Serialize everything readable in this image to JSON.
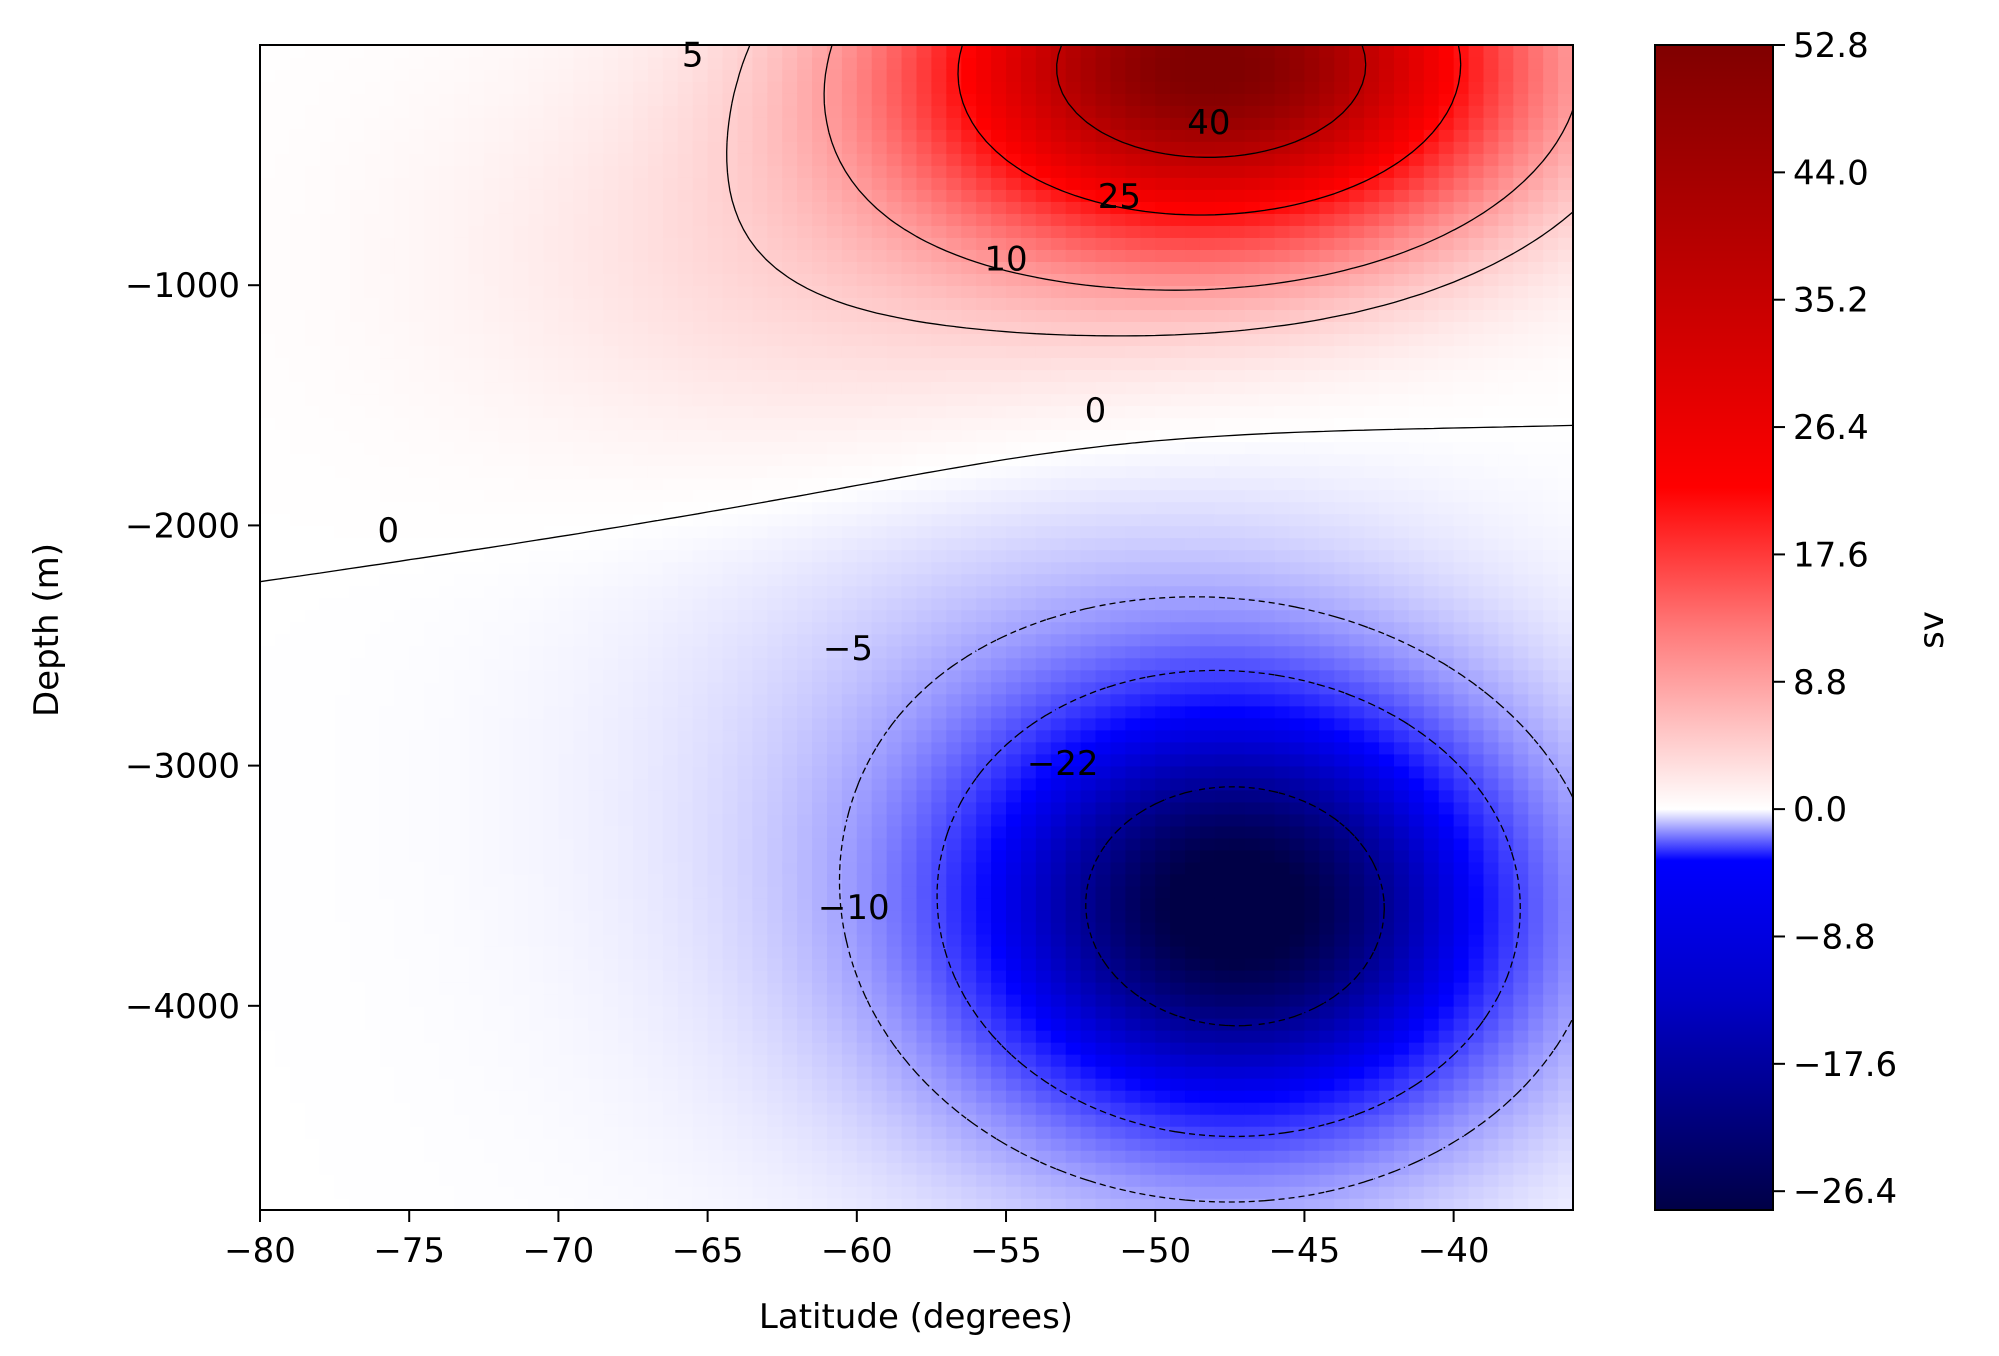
{
  "chart_data": {
    "type": "heatmap",
    "subtype": "filled-contour",
    "title": "",
    "xlabel": "Latitude (degrees)",
    "ylabel": "Depth (m)",
    "xlim": [
      -80,
      -36
    ],
    "ylim": [
      -4850,
      0
    ],
    "x_ticks": [
      -80,
      -75,
      -70,
      -65,
      -60,
      -55,
      -50,
      -45,
      -40
    ],
    "x_tick_labels": [
      "−80",
      "−75",
      "−70",
      "−65",
      "−60",
      "−55",
      "−50",
      "−45",
      "−40"
    ],
    "y_ticks": [
      -1000,
      -2000,
      -3000,
      -4000
    ],
    "y_tick_labels": [
      "−1000",
      "−2000",
      "−3000",
      "−4000"
    ],
    "colormap": "seismic",
    "colorbar": {
      "label": "sv",
      "vmin": -27.7,
      "vmax": 52.8,
      "ticks": [
        52.8,
        44.0,
        35.2,
        26.4,
        17.6,
        8.8,
        0.0,
        -8.8,
        -17.6,
        -26.4
      ],
      "tick_labels": [
        "52.8",
        "44.0",
        "35.2",
        "26.4",
        "17.6",
        "8.8",
        "0.0",
        "−8.8",
        "−17.6",
        "−26.4"
      ]
    },
    "contour_levels": [
      -22,
      -10,
      -5,
      0,
      5,
      10,
      25,
      40
    ],
    "contour_labels": [
      {
        "text": "40",
        "x": -48.2,
        "y": -330
      },
      {
        "text": "25",
        "x": -51.2,
        "y": -640
      },
      {
        "text": "10",
        "x": -55.0,
        "y": -900
      },
      {
        "text": "5",
        "x": -65.5,
        "y": -50
      },
      {
        "text": "0",
        "x": -52.0,
        "y": -1530
      },
      {
        "text": "0",
        "x": -75.7,
        "y": -2030
      },
      {
        "text": "−5",
        "x": -60.3,
        "y": -2520
      },
      {
        "text": "−10",
        "x": -60.1,
        "y": -3600
      },
      {
        "text": "−22",
        "x": -53.1,
        "y": -3000
      }
    ],
    "field_max_location": {
      "lat": -48,
      "depth": -100,
      "value": 52.8
    },
    "field_min_location": {
      "lat": -48,
      "depth": -3600,
      "value": -27.7
    }
  }
}
